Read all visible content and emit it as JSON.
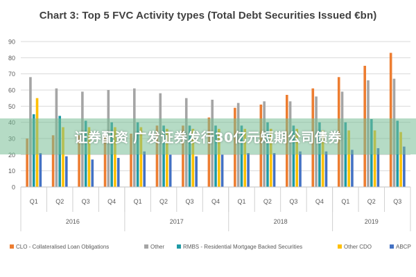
{
  "chart_data": {
    "type": "bar",
    "title": "Chart 3: Top 5 FVC Activity types (Total Debt Securities Issued €bn)",
    "xlabel": "",
    "ylabel": "",
    "ylim": [
      0,
      90
    ],
    "yticks": [
      0,
      10,
      20,
      30,
      40,
      50,
      60,
      70,
      80,
      90
    ],
    "grid": true,
    "legend_position": "bottom",
    "categories": [
      "Q1",
      "Q2",
      "Q3",
      "Q4",
      "Q1",
      "Q2",
      "Q3",
      "Q4",
      "Q1",
      "Q2",
      "Q3",
      "Q4",
      "Q1",
      "Q2",
      "Q3"
    ],
    "groups": [
      {
        "label": "2016",
        "count": 4
      },
      {
        "label": "2017",
        "count": 4
      },
      {
        "label": "2018",
        "count": 4
      },
      {
        "label": "2019",
        "count": 3
      }
    ],
    "series": [
      {
        "name": "CLO - Collateralised Loan Obligations",
        "color": "#ED7D31",
        "values": [
          30,
          32,
          32,
          33,
          33,
          38,
          38,
          43,
          49,
          51,
          57,
          61,
          68,
          75,
          83
        ]
      },
      {
        "name": "Other",
        "color": "#A5A5A5",
        "values": [
          68,
          61,
          59,
          60,
          61,
          58,
          55,
          54,
          52,
          53,
          53,
          56,
          59,
          66,
          67
        ]
      },
      {
        "name": "RMBS - Residential Mortgage Backed Securities",
        "color": "#1E9AA5",
        "values": [
          45,
          44,
          41,
          40,
          40,
          38,
          38,
          38,
          38,
          40,
          38,
          40,
          40,
          42,
          41
        ]
      },
      {
        "name": "Other CDO",
        "color": "#FFC000",
        "values": [
          55,
          37,
          37,
          37,
          37,
          36,
          36,
          36,
          36,
          36,
          36,
          35,
          35,
          35,
          34
        ]
      },
      {
        "name": "ABCP",
        "color": "#4472C4",
        "values": [
          21,
          19,
          17,
          18,
          22,
          20,
          19,
          20,
          21,
          21,
          22,
          22,
          23,
          24,
          25
        ]
      }
    ]
  },
  "overlay": {
    "banner_text": "证券配资 广发证券发行30亿元短期公司债券"
  }
}
